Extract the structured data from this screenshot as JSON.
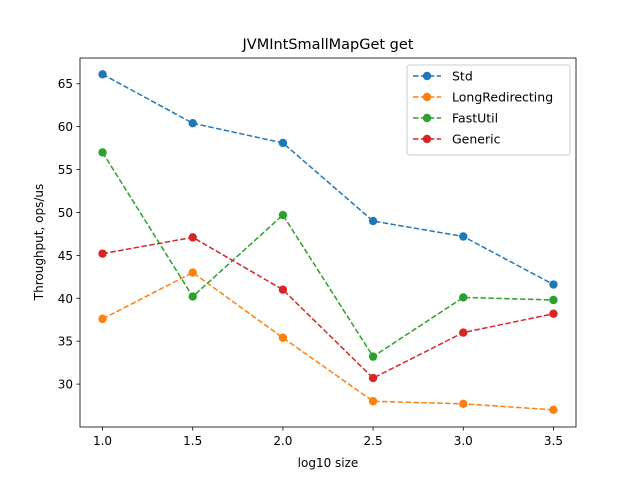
{
  "chart_data": {
    "type": "line",
    "title": "JVMIntSmallMapGet get",
    "xlabel": "log10 size",
    "ylabel": "Throughput, ops/us",
    "x": [
      1.0,
      1.5,
      2.0,
      2.5,
      3.0,
      3.5
    ],
    "xlim": [
      0.875,
      3.625
    ],
    "ylim": [
      25.0,
      68.0
    ],
    "xticks": [
      1.0,
      1.5,
      2.0,
      2.5,
      3.0,
      3.5
    ],
    "xtick_labels": [
      "1.0",
      "1.5",
      "2.0",
      "2.5",
      "3.0",
      "3.5"
    ],
    "yticks": [
      30,
      35,
      40,
      45,
      50,
      55,
      60,
      65
    ],
    "ytick_labels": [
      "30",
      "35",
      "40",
      "45",
      "50",
      "55",
      "60",
      "65"
    ],
    "grid": false,
    "legend_position": "top-right",
    "line_style": "dashed",
    "marker": "circle",
    "series": [
      {
        "name": "Std",
        "color": "#1f77b4",
        "values": [
          66.1,
          60.4,
          58.1,
          49.0,
          47.2,
          41.6
        ]
      },
      {
        "name": "LongRedirecting",
        "color": "#ff7f0e",
        "values": [
          37.6,
          43.0,
          35.4,
          28.0,
          27.7,
          27.0
        ]
      },
      {
        "name": "FastUtil",
        "color": "#2ca02c",
        "values": [
          57.0,
          40.2,
          49.7,
          33.2,
          40.1,
          39.8
        ]
      },
      {
        "name": "Generic",
        "color": "#d62728",
        "values": [
          45.2,
          47.1,
          41.0,
          30.7,
          36.0,
          38.2
        ]
      }
    ]
  }
}
